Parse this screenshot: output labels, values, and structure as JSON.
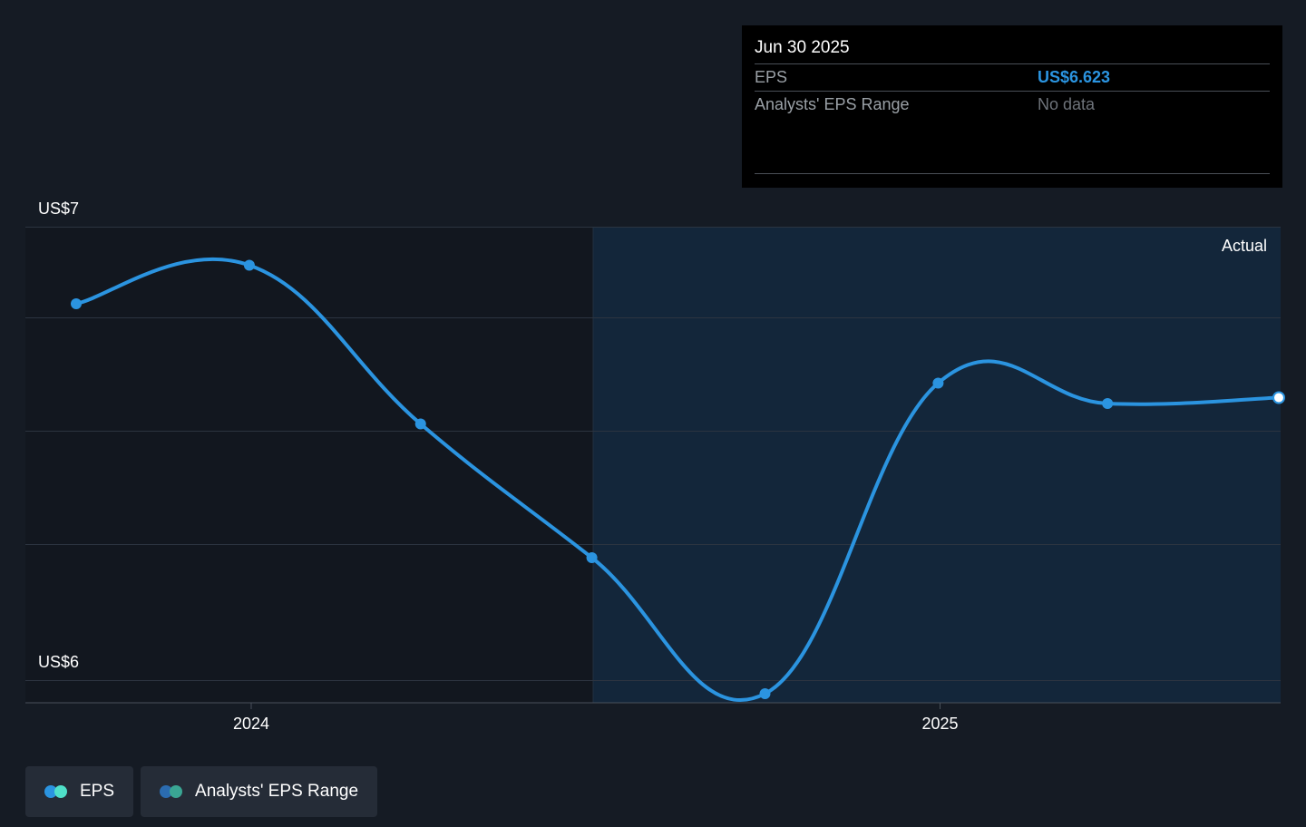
{
  "tooltip": {
    "date": "Jun 30 2025",
    "rows": [
      {
        "label": "EPS",
        "value": "US$6.623"
      },
      {
        "label": "Analysts' EPS Range",
        "value": "No data"
      }
    ]
  },
  "legend": [
    {
      "label": "EPS",
      "colors": [
        "#2b94e0",
        "#4fe0c9"
      ]
    },
    {
      "label": "Analysts' EPS Range",
      "colors": [
        "#2b6cb0",
        "#3aa693"
      ]
    }
  ],
  "colors": {
    "eps_line": "#2b94e0",
    "background": "#151b24",
    "past_region": "#12171f",
    "forecast_region": "#13263a"
  },
  "chart_data": {
    "type": "line",
    "y_tick_labels": [
      "US$7",
      "US$6"
    ],
    "ylim": [
      5.95,
      7.0
    ],
    "x_tick_labels": [
      "2024",
      "2025"
    ],
    "region_label": "Actual",
    "grid": true,
    "series": [
      {
        "name": "EPS",
        "x": [
          "2023-09-30",
          "2023-12-31",
          "2024-03-31",
          "2024-06-30",
          "2024-09-30",
          "2024-12-31",
          "2025-03-31",
          "2025-06-30"
        ],
        "values": [
          6.83,
          6.915,
          6.565,
          6.27,
          5.97,
          6.655,
          6.61,
          6.623
        ]
      }
    ]
  }
}
